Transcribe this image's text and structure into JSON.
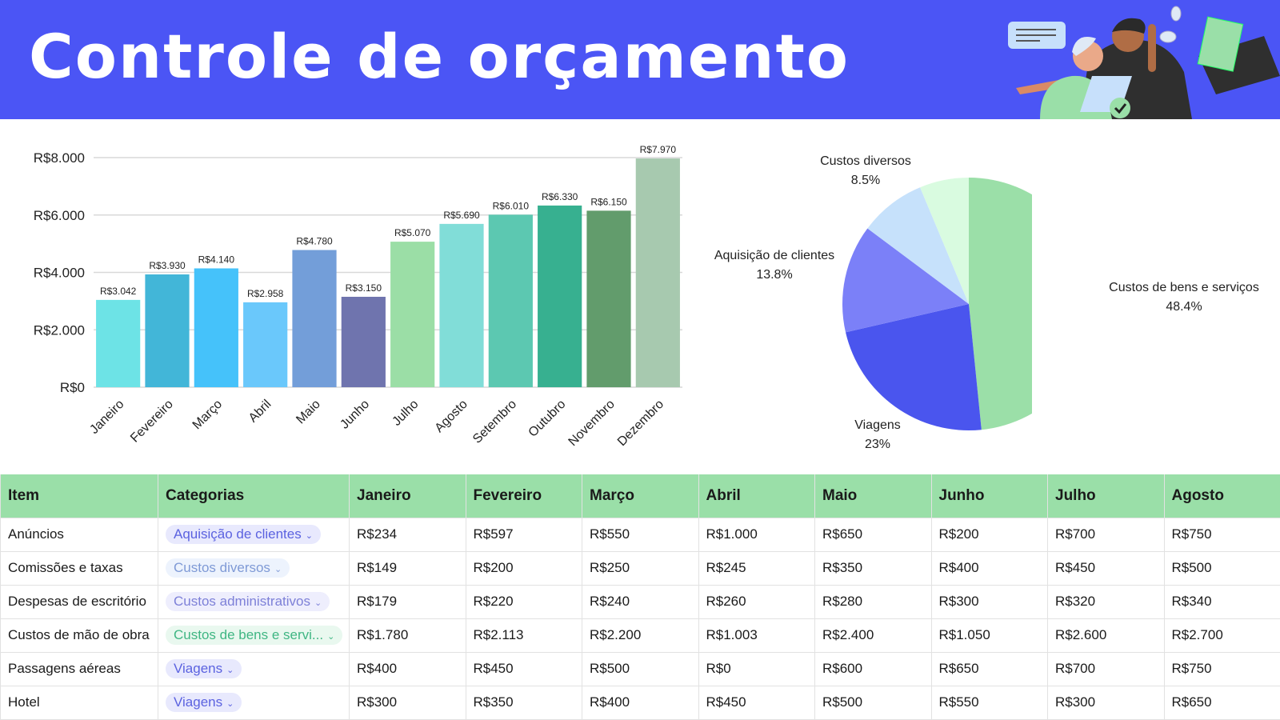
{
  "header": {
    "title": "Controle de orçamento",
    "illustration": "two people at laptop with money envelope"
  },
  "chart_data": [
    {
      "type": "bar",
      "categories": [
        "Janeiro",
        "Fevereiro",
        "Março",
        "Abril",
        "Maio",
        "Junho",
        "Julho",
        "Agosto",
        "Setembro",
        "Outubro",
        "Novembro",
        "Dezembro"
      ],
      "values": [
        3042,
        3930,
        4140,
        2958,
        4780,
        3150,
        5070,
        5690,
        6010,
        6330,
        6150,
        7970
      ],
      "data_labels": [
        "R$3.042",
        "R$3.930",
        "R$4.140",
        "R$2.958",
        "R$4.780",
        "R$3.150",
        "R$5.070",
        "R$5.690",
        "R$6.010",
        "R$6.330",
        "R$6.150",
        "R$7.970"
      ],
      "colors": [
        "#6de3e6",
        "#42b6d8",
        "#45c2fa",
        "#6ac8fb",
        "#739ed9",
        "#6f74ae",
        "#9bdea6",
        "#81ddd8",
        "#5cc8b1",
        "#37b090",
        "#629c6c",
        "#a7c9af"
      ],
      "yticks": [
        "R$0",
        "R$2.000",
        "R$4.000",
        "R$6.000",
        "R$8.000"
      ],
      "ylim": [
        0,
        8000
      ],
      "grid": true
    },
    {
      "type": "pie",
      "slices": [
        {
          "label": "Custos de bens e serviços",
          "pct_label": "48.4%",
          "value": 48.4,
          "color": "#9bdfa8"
        },
        {
          "label": "Viagens",
          "pct_label": "23%",
          "value": 23,
          "color": "#4a55ee"
        },
        {
          "label": "Aquisição de clientes",
          "pct_label": "13.8%",
          "value": 13.8,
          "color": "#7b80f8"
        },
        {
          "label": "Custos diversos",
          "pct_label": "8.5%",
          "value": 8.5,
          "color": "#c6e1fb"
        },
        {
          "label": "",
          "pct_label": "",
          "value": 6.3,
          "color": "#d9fbe0"
        }
      ]
    }
  ],
  "table": {
    "headers": [
      "Item",
      "Categorias",
      "Janeiro",
      "Fevereiro",
      "Março",
      "Abril",
      "Maio",
      "Junho",
      "Julho",
      "Agosto"
    ],
    "rows": [
      {
        "item": "Anúncios",
        "category": "Aquisição de clientes",
        "chip_bg": "#e8e9fd",
        "chip_fg": "#5b62e0",
        "values": [
          "R$234",
          "R$597",
          "R$550",
          "R$1.000",
          "R$650",
          "R$200",
          "R$700",
          "R$750"
        ]
      },
      {
        "item": "Comissões e taxas",
        "category": "Custos diversos",
        "chip_bg": "#edf3fd",
        "chip_fg": "#7f9ad6",
        "values": [
          "R$149",
          "R$200",
          "R$250",
          "R$245",
          "R$350",
          "R$400",
          "R$450",
          "R$500"
        ]
      },
      {
        "item": "Despesas de escritório",
        "category": "Custos administrativos",
        "chip_bg": "#eeeefd",
        "chip_fg": "#7d80d8",
        "values": [
          "R$179",
          "R$220",
          "R$240",
          "R$260",
          "R$280",
          "R$300",
          "R$320",
          "R$340"
        ]
      },
      {
        "item": "Custos de mão de obra",
        "category": "Custos de bens e servi...",
        "chip_bg": "#e9f8ef",
        "chip_fg": "#3fb683",
        "values": [
          "R$1.780",
          "R$2.113",
          "R$2.200",
          "R$1.003",
          "R$2.400",
          "R$1.050",
          "R$2.600",
          "R$2.700"
        ]
      },
      {
        "item": "Passagens aéreas",
        "category": "Viagens",
        "chip_bg": "#e8e9fd",
        "chip_fg": "#5b62e0",
        "values": [
          "R$400",
          "R$450",
          "R$500",
          "R$0",
          "R$600",
          "R$650",
          "R$700",
          "R$750"
        ]
      },
      {
        "item": "Hotel",
        "category": "Viagens",
        "chip_bg": "#e8e9fd",
        "chip_fg": "#5b62e0",
        "values": [
          "R$300",
          "R$350",
          "R$400",
          "R$450",
          "R$500",
          "R$550",
          "R$300",
          "R$650"
        ]
      }
    ]
  }
}
